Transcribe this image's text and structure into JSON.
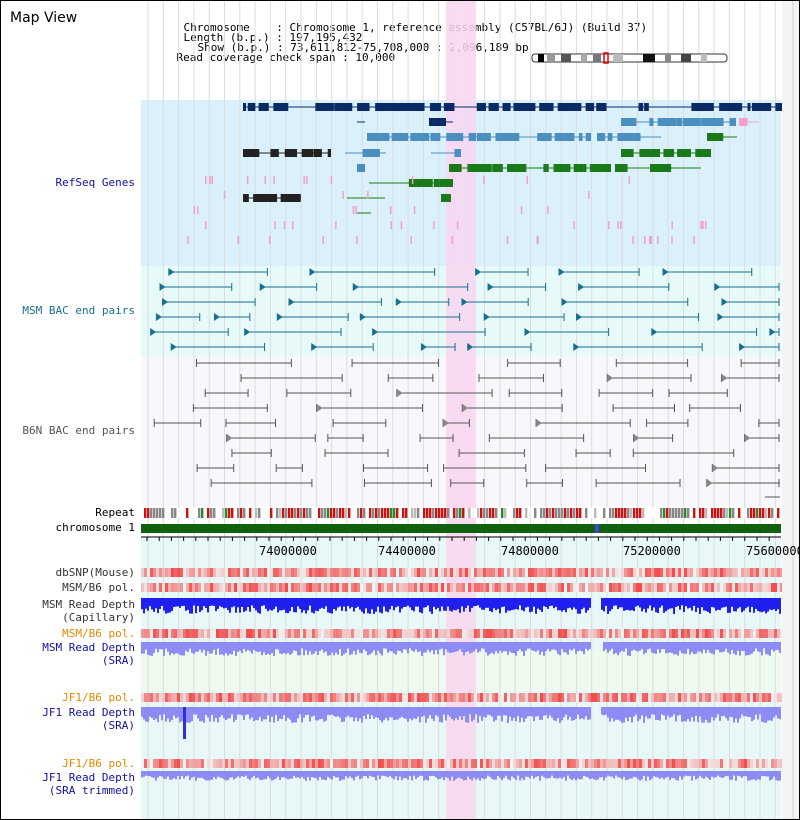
{
  "title": "Map View",
  "header": {
    "chromosome_key": "Chromosome",
    "chromosome_value": "Chromosome 1, reference assembly (C57BL/6J) (Build 37)",
    "length_key": "Length (b.p.)",
    "length_value": "197,195,432",
    "show_key": "Show (b.p.)",
    "show_value": "73,611,812-75,708,000 : 2,096,189 bp",
    "coverage_key": "Read coverage check span",
    "coverage_value": "10,000"
  },
  "tracks": {
    "refseq": "RefSeq Genes",
    "msm_bac": "MSM BAC end pairs",
    "b6n_bac": "B6N BAC end pairs",
    "repeat": "Repeat",
    "chromosome": "chromosome 1",
    "dbsnp": "dbSNP(Mouse)",
    "msm_b6_pol_1": "MSM/B6 pol.",
    "msm_read_depth_cap_1": "MSM Read Depth",
    "msm_read_depth_cap_2": "(Capillary)",
    "msm_b6_pol_2": "MSM/B6 pol.",
    "msm_read_depth_sra_1": "MSM Read Depth",
    "msm_read_depth_sra_2": "(SRA)",
    "jf1_b6_pol_1": "JF1/B6 pol.",
    "jf1_read_depth_sra_1": "JF1 Read Depth",
    "jf1_read_depth_sra_2": "(SRA)",
    "jf1_b6_pol_2": "JF1/B6 pol.",
    "jf1_read_depth_trim_1": "JF1 Read Depth",
    "jf1_read_depth_trim_2": "(SRA trimmed)"
  },
  "ruler_ticks": [
    "74000000",
    "74400000",
    "74800000",
    "75200000",
    "75600000"
  ],
  "colors": {
    "refseq_bg": "#daf0fa",
    "msm_bg": "#e6fafa",
    "b6n_bg": "#f8f8fc",
    "highlight": "#f8d6f0",
    "gene_navy": "#0a2a66",
    "gene_blue": "#4a8fbf",
    "gene_green": "#1a7a1a",
    "gene_pink": "#f4a0c8",
    "chrom_green": "#106010",
    "bac_teal": "#1a6f8f",
    "bac_gray": "#555555",
    "depth_blue": "#2020ee",
    "depth_light": "#8c8cf4"
  }
}
